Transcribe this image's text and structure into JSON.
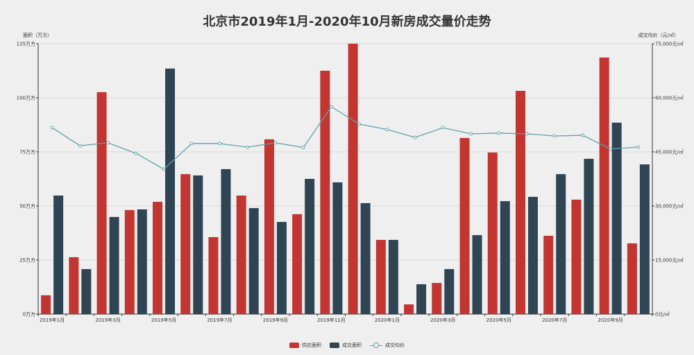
{
  "title": "北京市2019年1月-2020年10月新房成交量价走势",
  "left_axis_name": "面积（万方）",
  "right_axis_name": "成交均价（元/㎡）",
  "legend": [
    {
      "label": "供应面积",
      "color": "#c23531"
    },
    {
      "label": "成交面积",
      "color": "#2f4554"
    },
    {
      "label": "成交均价",
      "color": "#61a0a8"
    }
  ],
  "chart_data": {
    "type": "bar",
    "title": "北京市2019年1月-2020年10月新房成交量价走势",
    "xlabel": "",
    "ylabel": "面积（万方）",
    "y2label": "成交均价（元/㎡）",
    "ylim": [
      0,
      125
    ],
    "y2lim": [
      0,
      75000
    ],
    "grid": true,
    "legend_position": "bottom",
    "categories": [
      "2019年1月",
      "2019年2月",
      "2019年3月",
      "2019年4月",
      "2019年5月",
      "2019年6月",
      "2019年7月",
      "2019年8月",
      "2019年9月",
      "2019年10月",
      "2019年11月",
      "2019年12月",
      "2020年1月",
      "2020年2月",
      "2020年3月",
      "2020年4月",
      "2020年5月",
      "2020年6月",
      "2020年7月",
      "2020年8月",
      "2020年9月",
      "2020年10月"
    ],
    "x_tick_labels": [
      "2019年1月",
      "2019年3月",
      "2019年5月",
      "2019年7月",
      "2019年9月",
      "2019年11月",
      "2020年1月",
      "2020年3月",
      "2020年5月",
      "2020年7月",
      "2020年9月"
    ],
    "y_tick_labels": [
      "0万方",
      "25万方",
      "50万方",
      "75万方",
      "100万方",
      "125万方"
    ],
    "y2_tick_labels": [
      "0元/㎡",
      "15,000元/㎡",
      "30,000元/㎡",
      "45,000元/㎡",
      "60,000元/㎡",
      "75,000元/㎡"
    ],
    "series": [
      {
        "name": "供应面积",
        "type": "bar",
        "axis": "left",
        "color": "#c23531",
        "values": [
          8.7,
          26.3,
          102.6,
          48.1,
          51.9,
          64.7,
          35.6,
          54.8,
          80.8,
          46.2,
          112.5,
          125.0,
          34.3,
          4.5,
          14.4,
          81.4,
          74.7,
          103.2,
          36.2,
          52.9,
          118.6,
          32.7
        ]
      },
      {
        "name": "成交面积",
        "type": "bar",
        "axis": "left",
        "color": "#2f4554",
        "values": [
          54.8,
          20.8,
          44.9,
          48.4,
          113.5,
          64.1,
          67.0,
          49.0,
          42.6,
          62.5,
          60.9,
          51.3,
          34.3,
          13.8,
          20.8,
          36.5,
          52.2,
          54.2,
          64.7,
          71.8,
          88.5,
          69.2
        ]
      },
      {
        "name": "成交均价",
        "type": "line",
        "axis": "right",
        "color": "#61a0a8",
        "values": [
          51700,
          46700,
          47500,
          44600,
          40200,
          47300,
          47300,
          46300,
          47500,
          46200,
          57500,
          52700,
          51200,
          49000,
          51700,
          50000,
          50200,
          50000,
          49400,
          49600,
          45800,
          46300
        ]
      }
    ]
  }
}
